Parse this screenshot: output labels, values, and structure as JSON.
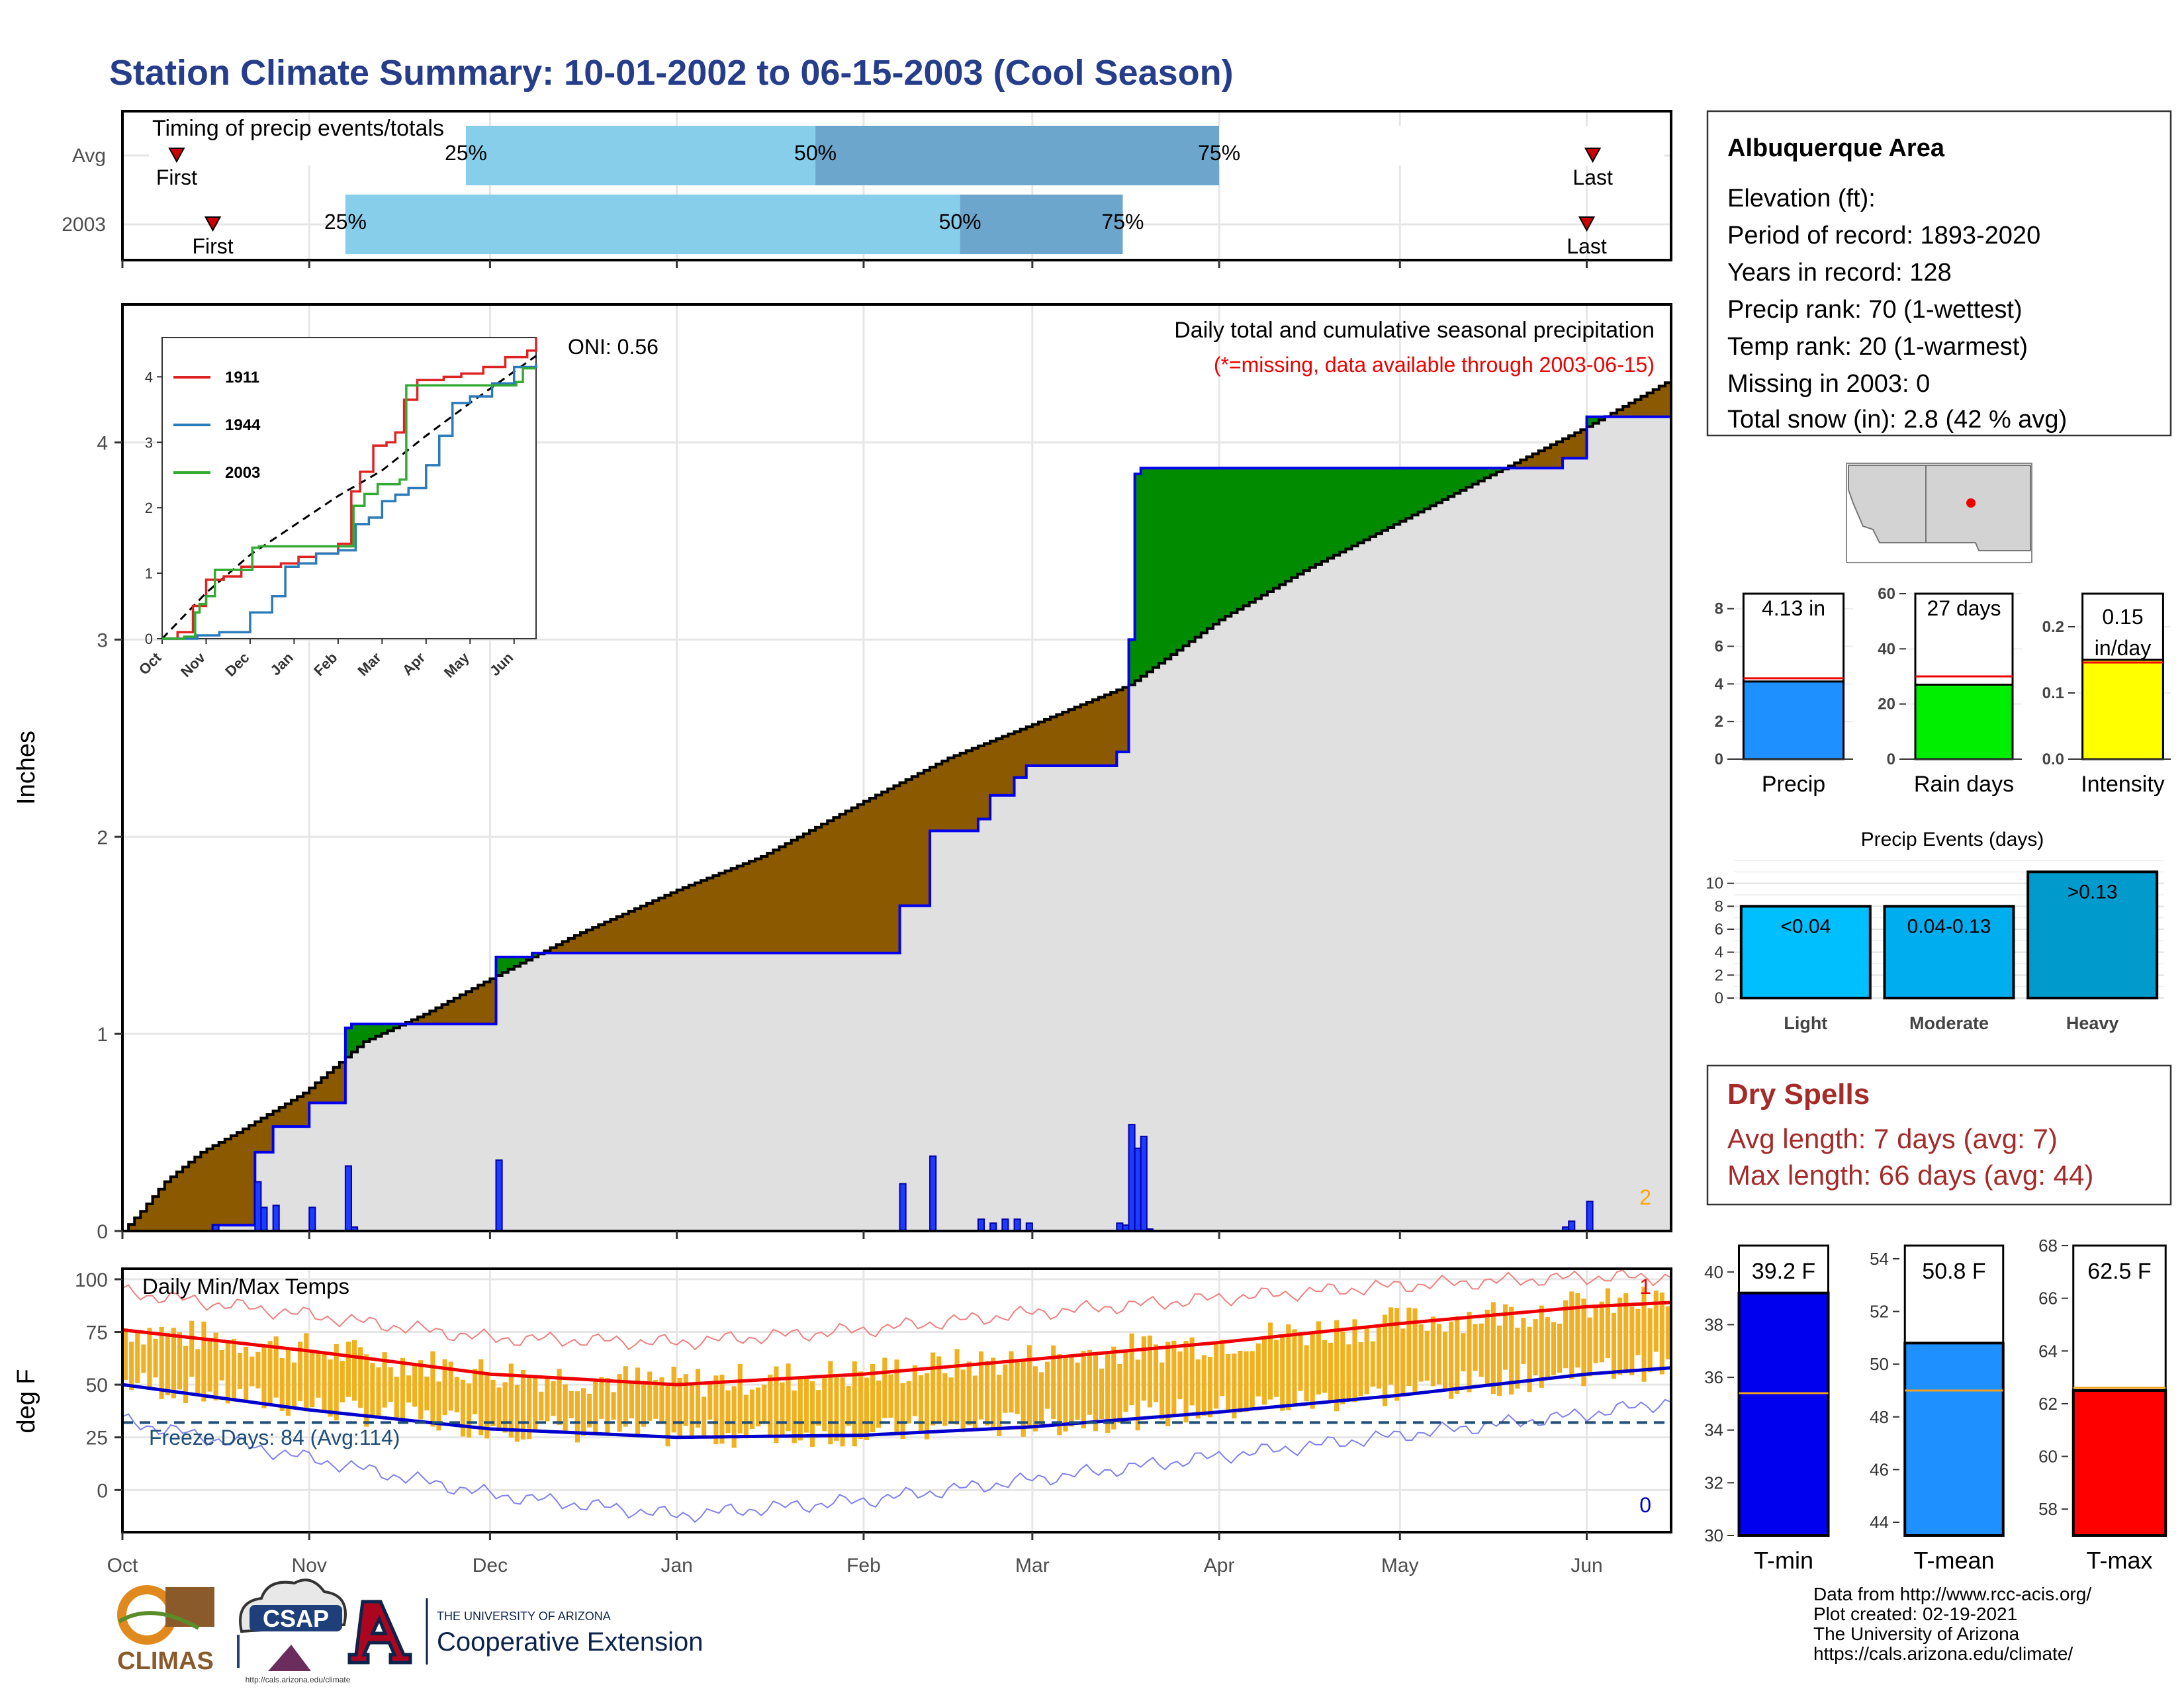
{
  "page": {
    "title": "Station Climate Summary: 10-01-2002 to 06-15-2003 (Cool Season)",
    "credits": [
      "Data from http://www.rcc-acis.org/",
      "Plot created: 02-19-2021",
      "The University of Arizona",
      "https://cals.arizona.edu/climate/"
    ],
    "logos": {
      "climas": "CLIMAS",
      "csap": "CSAP",
      "csap_url": "http://cals.arizona.edu/climate",
      "ua_line1": "THE UNIVERSITY OF ARIZONA",
      "ua_line2": "Cooperative Extension"
    }
  },
  "chart_data": [
    {
      "id": "timing",
      "type": "bar",
      "title": "Timing of precip events/totals",
      "rows": [
        {
          "label": "Avg",
          "first": "Oct 10",
          "q25": "Nov 27",
          "q50": "Jan 24",
          "q75": "Apr 1",
          "last": "Jun 2"
        },
        {
          "label": "2003",
          "first": "Oct 16",
          "q25": "Nov 7",
          "q50": "Feb 17",
          "q75": "Mar 16",
          "last": "Jun 1"
        }
      ],
      "labels": {
        "first": "First",
        "last": "Last",
        "p25": "25%",
        "p50": "50%",
        "p75": "75%"
      },
      "colors": {
        "light": "#87ceeb",
        "dark": "#6ca6cd",
        "marker": "#cc0000"
      }
    },
    {
      "id": "precip",
      "type": "area",
      "title": "Daily total and cumulative seasonal precipitation",
      "subtitle": "(*=missing, data available through 2003-06-15)",
      "ylabel": "Inches",
      "ylim": [
        0,
        4.7
      ],
      "yticks": [
        0,
        1,
        2,
        3,
        4
      ],
      "oni": "ONI: 0.56",
      "corner_label": "2",
      "xlim": [
        "2002-10-01",
        "2003-06-15"
      ],
      "xticks": [
        {
          "label": "Oct",
          "date": "2002-10-01"
        },
        {
          "label": "Nov",
          "date": "2002-11-01"
        },
        {
          "label": "Dec",
          "date": "2002-12-01"
        },
        {
          "label": "Jan",
          "date": "2003-01-01"
        },
        {
          "label": "Feb",
          "date": "2003-02-01"
        },
        {
          "label": "Mar",
          "date": "2003-03-01"
        },
        {
          "label": "Apr",
          "date": "2003-04-01"
        },
        {
          "label": "May",
          "date": "2003-05-01"
        },
        {
          "label": "Jun",
          "date": "2003-06-01"
        }
      ],
      "avg_cumulative": [
        [
          "2002-10-01",
          0.0
        ],
        [
          "2002-10-04",
          0.1
        ],
        [
          "2002-10-08",
          0.25
        ],
        [
          "2002-10-14",
          0.4
        ],
        [
          "2002-10-20",
          0.5
        ],
        [
          "2002-10-31",
          0.7
        ],
        [
          "2002-11-10",
          0.96
        ],
        [
          "2002-11-20",
          1.1
        ],
        [
          "2002-12-01",
          1.28
        ],
        [
          "2002-12-15",
          1.5
        ],
        [
          "2003-01-01",
          1.73
        ],
        [
          "2003-01-15",
          1.9
        ],
        [
          "2003-02-01",
          2.18
        ],
        [
          "2003-02-15",
          2.4
        ],
        [
          "2003-03-01",
          2.57
        ],
        [
          "2003-03-17",
          2.77
        ],
        [
          "2003-04-01",
          3.1
        ],
        [
          "2003-04-15",
          3.35
        ],
        [
          "2003-05-01",
          3.6
        ],
        [
          "2003-05-15",
          3.82
        ],
        [
          "2003-06-01",
          4.08
        ],
        [
          "2003-06-15",
          4.32
        ]
      ],
      "cumulative_2003": [
        [
          "2002-10-01",
          0.0
        ],
        [
          "2002-10-16",
          0.0
        ],
        [
          "2002-10-16",
          0.03
        ],
        [
          "2002-10-23",
          0.03
        ],
        [
          "2002-10-23",
          0.4
        ],
        [
          "2002-10-26",
          0.4
        ],
        [
          "2002-10-26",
          0.53
        ],
        [
          "2002-11-01",
          0.53
        ],
        [
          "2002-11-01",
          0.65
        ],
        [
          "2002-11-07",
          0.65
        ],
        [
          "2002-11-07",
          1.03
        ],
        [
          "2002-11-08",
          1.03
        ],
        [
          "2002-11-08",
          1.05
        ],
        [
          "2002-11-30",
          1.05
        ],
        [
          "2002-11-30",
          1.05
        ],
        [
          "2002-12-02",
          1.05
        ],
        [
          "2002-12-02",
          1.39
        ],
        [
          "2002-12-08",
          1.39
        ],
        [
          "2002-12-08",
          1.41
        ],
        [
          "2003-02-07",
          1.41
        ],
        [
          "2003-02-07",
          1.65
        ],
        [
          "2003-02-12",
          1.65
        ],
        [
          "2003-02-12",
          2.03
        ],
        [
          "2003-02-20",
          2.03
        ],
        [
          "2003-02-20",
          2.09
        ],
        [
          "2003-02-22",
          2.09
        ],
        [
          "2003-02-22",
          2.21
        ],
        [
          "2003-02-26",
          2.21
        ],
        [
          "2003-02-26",
          2.3
        ],
        [
          "2003-02-28",
          2.3
        ],
        [
          "2003-02-28",
          2.36
        ],
        [
          "2003-03-15",
          2.36
        ],
        [
          "2003-03-15",
          2.43
        ],
        [
          "2003-03-17",
          2.43
        ],
        [
          "2003-03-17",
          3.0
        ],
        [
          "2003-03-18",
          3.0
        ],
        [
          "2003-03-18",
          3.84
        ],
        [
          "2003-03-19",
          3.84
        ],
        [
          "2003-03-19",
          3.87
        ],
        [
          "2003-05-28",
          3.87
        ],
        [
          "2003-05-28",
          3.92
        ],
        [
          "2003-06-01",
          3.92
        ],
        [
          "2003-06-01",
          4.13
        ],
        [
          "2003-06-15",
          4.13
        ]
      ],
      "daily_2003": [
        [
          "2002-10-16",
          0.03
        ],
        [
          "2002-10-23",
          0.25
        ],
        [
          "2002-10-24",
          0.12
        ],
        [
          "2002-10-26",
          0.13
        ],
        [
          "2002-11-01",
          0.12
        ],
        [
          "2002-11-07",
          0.33
        ],
        [
          "2002-11-08",
          0.02
        ],
        [
          "2002-12-02",
          0.36
        ],
        [
          "2003-02-07",
          0.24
        ],
        [
          "2003-02-12",
          0.38
        ],
        [
          "2003-02-20",
          0.06
        ],
        [
          "2003-02-22",
          0.04
        ],
        [
          "2003-02-24",
          0.06
        ],
        [
          "2003-02-26",
          0.06
        ],
        [
          "2003-02-28",
          0.04
        ],
        [
          "2003-03-15",
          0.04
        ],
        [
          "2003-03-16",
          0.03
        ],
        [
          "2003-03-17",
          0.54
        ],
        [
          "2003-03-18",
          0.42
        ],
        [
          "2003-03-19",
          0.48
        ],
        [
          "2003-03-20",
          0.01
        ],
        [
          "2003-05-28",
          0.02
        ],
        [
          "2003-05-29",
          0.05
        ],
        [
          "2003-06-01",
          0.15
        ]
      ],
      "colors": {
        "surplus": "#008b00",
        "deficit": "#8b5a00",
        "fill": "#e0e0e0",
        "line": "#0000ee"
      }
    },
    {
      "id": "inset",
      "type": "line",
      "ylim": [
        0,
        4.6
      ],
      "yticks": [
        0,
        1,
        2,
        3,
        4
      ],
      "xticks": [
        "Oct",
        "Nov",
        "Dec",
        "Jan",
        "Feb",
        "Mar",
        "Apr",
        "May",
        "Jun"
      ],
      "series": [
        {
          "name": "1911",
          "color": "#dd2222",
          "values": [
            [
              0,
              0
            ],
            [
              0.35,
              0.1
            ],
            [
              0.7,
              0.5
            ],
            [
              1.0,
              0.9
            ],
            [
              1.4,
              0.95
            ],
            [
              1.8,
              1.1
            ],
            [
              2.3,
              1.1
            ],
            [
              2.7,
              1.15
            ],
            [
              3.1,
              1.25
            ],
            [
              3.5,
              1.3
            ],
            [
              4.0,
              1.45
            ],
            [
              4.3,
              2.25
            ],
            [
              4.5,
              2.55
            ],
            [
              4.8,
              2.95
            ],
            [
              5.1,
              3.0
            ],
            [
              5.3,
              3.15
            ],
            [
              5.5,
              3.65
            ],
            [
              5.8,
              3.95
            ],
            [
              6.0,
              3.95
            ],
            [
              6.4,
              4.0
            ],
            [
              6.8,
              4.05
            ],
            [
              7.3,
              4.15
            ],
            [
              7.8,
              4.3
            ],
            [
              8.3,
              4.4
            ],
            [
              8.5,
              4.6
            ]
          ]
        },
        {
          "name": "1944",
          "color": "#2b7bba",
          "values": [
            [
              0,
              0
            ],
            [
              0.8,
              0.05
            ],
            [
              1.3,
              0.1
            ],
            [
              2.0,
              0.4
            ],
            [
              2.5,
              0.65
            ],
            [
              2.8,
              1.1
            ],
            [
              3.1,
              1.15
            ],
            [
              3.5,
              1.3
            ],
            [
              4.0,
              1.35
            ],
            [
              4.4,
              1.75
            ],
            [
              4.7,
              1.85
            ],
            [
              5.0,
              2.1
            ],
            [
              5.3,
              2.2
            ],
            [
              5.6,
              2.3
            ],
            [
              6.0,
              2.65
            ],
            [
              6.3,
              3.1
            ],
            [
              6.6,
              3.6
            ],
            [
              7.0,
              3.7
            ],
            [
              7.5,
              3.9
            ],
            [
              8.0,
              4.15
            ],
            [
              8.5,
              4.2
            ]
          ]
        },
        {
          "name": "2003",
          "color": "#33aa33",
          "values": [
            [
              0,
              0
            ],
            [
              0.5,
              0.03
            ],
            [
              0.75,
              0.4
            ],
            [
              0.85,
              0.53
            ],
            [
              1.0,
              0.65
            ],
            [
              1.2,
              1.05
            ],
            [
              2.0,
              1.05
            ],
            [
              2.05,
              1.39
            ],
            [
              2.2,
              1.41
            ],
            [
              4.2,
              1.41
            ],
            [
              4.35,
              2.03
            ],
            [
              4.6,
              2.21
            ],
            [
              4.9,
              2.36
            ],
            [
              5.4,
              2.43
            ],
            [
              5.55,
              3.87
            ],
            [
              7.9,
              3.87
            ],
            [
              8.05,
              3.92
            ],
            [
              8.2,
              4.13
            ],
            [
              8.5,
              4.13
            ]
          ]
        }
      ],
      "avg": [
        [
          0,
          0
        ],
        [
          1.0,
          0.7
        ],
        [
          2.0,
          1.28
        ],
        [
          3.0,
          1.73
        ],
        [
          4.0,
          2.18
        ],
        [
          5.0,
          2.57
        ],
        [
          6.0,
          3.1
        ],
        [
          7.0,
          3.6
        ],
        [
          8.0,
          4.08
        ],
        [
          8.5,
          4.32
        ]
      ]
    },
    {
      "id": "temps",
      "type": "bar",
      "title": "Daily Min/Max Temps",
      "ylabel": "deg F",
      "ylim": [
        -20,
        105
      ],
      "yticks": [
        0,
        25,
        50,
        75,
        100
      ],
      "freeze_label": "Freeze Days: 84 (Avg:114)",
      "freeze_line": 32,
      "max_record_label": "1",
      "min_record_label": "0",
      "xticks": [
        "Oct",
        "Nov",
        "Dec",
        "Jan",
        "Feb",
        "Mar",
        "Apr",
        "May",
        "Jun"
      ],
      "avg_max": [
        [
          0,
          76
        ],
        [
          31,
          66
        ],
        [
          61,
          55
        ],
        [
          92,
          50
        ],
        [
          123,
          55
        ],
        [
          151,
          62
        ],
        [
          182,
          70
        ],
        [
          212,
          79
        ],
        [
          243,
          87
        ],
        [
          257,
          89
        ]
      ],
      "avg_min": [
        [
          0,
          50
        ],
        [
          31,
          38
        ],
        [
          61,
          29
        ],
        [
          92,
          25
        ],
        [
          123,
          26
        ],
        [
          151,
          30
        ],
        [
          182,
          37
        ],
        [
          212,
          45
        ],
        [
          243,
          55
        ],
        [
          257,
          58
        ]
      ],
      "rec_max": [
        [
          0,
          94
        ],
        [
          31,
          83
        ],
        [
          61,
          72
        ],
        [
          92,
          70
        ],
        [
          123,
          76
        ],
        [
          151,
          84
        ],
        [
          182,
          91
        ],
        [
          212,
          97
        ],
        [
          243,
          101
        ],
        [
          257,
          101
        ]
      ],
      "rec_min": [
        [
          0,
          33
        ],
        [
          31,
          15
        ],
        [
          61,
          -2
        ],
        [
          92,
          -12
        ],
        [
          123,
          -5
        ],
        [
          151,
          5
        ],
        [
          182,
          16
        ],
        [
          212,
          26
        ],
        [
          243,
          36
        ],
        [
          257,
          42
        ]
      ],
      "colors": {
        "bars": "#f0b020",
        "avg_max": "#ee0000",
        "avg_min": "#0000cc",
        "rec_max": "#f08080",
        "rec_min": "#8080f0",
        "freeze": "#1f4e79"
      }
    },
    {
      "id": "summary_bars",
      "type": "bar",
      "categories": [
        "Precip",
        "Rain days",
        "Intensity"
      ],
      "values": [
        4.13,
        27,
        0.15
      ],
      "value_labels": [
        "4.13 in",
        "27 days",
        "0.15 in/day"
      ],
      "averages": [
        4.3,
        30,
        0.146
      ],
      "ylims": [
        [
          0,
          8.8
        ],
        [
          0,
          60
        ],
        [
          0,
          0.25
        ]
      ],
      "yticks": [
        [
          0,
          2,
          4,
          6,
          8
        ],
        [
          0,
          20,
          40,
          60
        ],
        [
          0.0,
          0.1,
          0.2
        ]
      ],
      "colors": [
        "#1e90ff",
        "#00ee00",
        "#ffff00"
      ]
    },
    {
      "id": "precip_events",
      "type": "bar",
      "title": "Precip Events (days)",
      "categories": [
        "Light",
        "Moderate",
        "Heavy"
      ],
      "bar_labels": [
        "<0.04",
        "0.04-0.13",
        ">0.13"
      ],
      "values": [
        8,
        8,
        11
      ],
      "ylim": [
        0,
        12
      ],
      "yticks": [
        0,
        2,
        4,
        6,
        8,
        10
      ],
      "colors": [
        "#00bfff",
        "#00aeef",
        "#009acd"
      ]
    },
    {
      "id": "temp_bars",
      "type": "bar",
      "categories": [
        "T-min",
        "T-mean",
        "T-max"
      ],
      "values": [
        39.2,
        50.8,
        62.5
      ],
      "value_labels": [
        "39.2 F",
        "50.8 F",
        "62.5 F"
      ],
      "averages": [
        35.4,
        49.0,
        62.6
      ],
      "ylims": [
        [
          30,
          41
        ],
        [
          43.5,
          54.5
        ],
        [
          57,
          68
        ]
      ],
      "yticks": [
        [
          30,
          32,
          34,
          36,
          38,
          40
        ],
        [
          44,
          46,
          48,
          50,
          52,
          54
        ],
        [
          58,
          60,
          62,
          64,
          66,
          68
        ]
      ],
      "colors": [
        "#0000ee",
        "#1e90ff",
        "#ff0000"
      ]
    }
  ],
  "station": {
    "name": "Albuquerque Area",
    "lines": [
      "Elevation (ft):",
      "Period of record: 1893-2020",
      "Years in record: 128",
      "Precip rank: 70 (1-wettest)",
      "Temp rank: 20 (1-warmest)",
      "Missing in 2003: 0",
      "Total snow (in): 2.8 (42 % avg)"
    ]
  },
  "dry_spells": {
    "title": "Dry Spells",
    "lines": [
      "Avg length: 7 days (avg: 7)",
      "Max length: 66 days (avg: 44)"
    ]
  },
  "map": {
    "marker_color": "#ee0000"
  }
}
